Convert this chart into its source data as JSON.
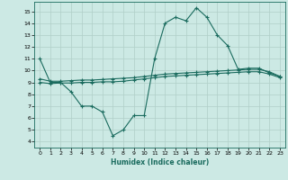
{
  "xlabel": "Humidex (Indice chaleur)",
  "xlim": [
    -0.5,
    23.5
  ],
  "ylim": [
    3.5,
    15.8
  ],
  "yticks": [
    4,
    5,
    6,
    7,
    8,
    9,
    10,
    11,
    12,
    13,
    14,
    15
  ],
  "xticks": [
    0,
    1,
    2,
    3,
    4,
    5,
    6,
    7,
    8,
    9,
    10,
    11,
    12,
    13,
    14,
    15,
    16,
    17,
    18,
    19,
    20,
    21,
    22,
    23
  ],
  "bg_color": "#cce9e4",
  "line_color": "#1a6b5e",
  "grid_color": "#b0cfc8",
  "line1_y": [
    11.0,
    9.0,
    9.0,
    8.2,
    7.0,
    7.0,
    6.5,
    4.5,
    5.0,
    6.2,
    6.2,
    11.0,
    14.0,
    14.5,
    14.2,
    15.3,
    14.5,
    13.0,
    12.1,
    10.1,
    10.2,
    10.2,
    9.8,
    9.5
  ],
  "line2_y": [
    9.3,
    9.1,
    9.1,
    9.15,
    9.2,
    9.2,
    9.25,
    9.3,
    9.35,
    9.4,
    9.5,
    9.6,
    9.7,
    9.75,
    9.8,
    9.85,
    9.9,
    9.95,
    10.0,
    10.05,
    10.1,
    10.1,
    9.9,
    9.5
  ],
  "line3_y": [
    9.0,
    8.9,
    8.95,
    8.95,
    9.0,
    9.0,
    9.05,
    9.05,
    9.1,
    9.2,
    9.3,
    9.4,
    9.5,
    9.55,
    9.6,
    9.65,
    9.7,
    9.75,
    9.8,
    9.85,
    9.9,
    9.9,
    9.7,
    9.4
  ]
}
